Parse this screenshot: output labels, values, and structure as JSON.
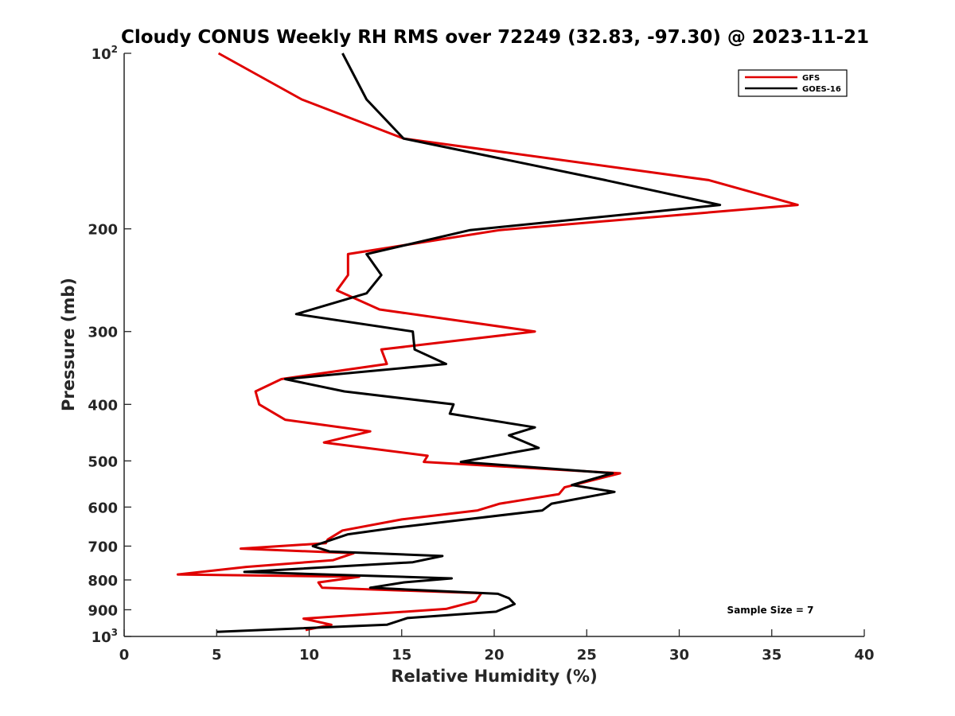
{
  "chart_data": {
    "type": "line",
    "title": "Cloudy CONUS Weekly RH RMS over 72249 (32.83, -97.30) @ 2023-11-21",
    "xlabel": "Relative Humidity (%)",
    "ylabel": "Pressure (mb)",
    "xlim": [
      0,
      40
    ],
    "ylim": [
      100,
      1000
    ],
    "y_scale": "log",
    "y_reversed": true,
    "x_ticks": [
      0,
      5,
      10,
      15,
      20,
      25,
      30,
      35,
      40
    ],
    "y_ticks": [
      {
        "value": 100,
        "base": "10",
        "exp": "2"
      },
      {
        "value": 200,
        "label": "200"
      },
      {
        "value": 300,
        "label": "300"
      },
      {
        "value": 400,
        "label": "400"
      },
      {
        "value": 500,
        "label": "500"
      },
      {
        "value": 600,
        "label": "600"
      },
      {
        "value": 700,
        "label": "700"
      },
      {
        "value": 800,
        "label": "800"
      },
      {
        "value": 900,
        "label": "900"
      },
      {
        "value": 1000,
        "base": "10",
        "exp": "3"
      }
    ],
    "legend_position": "top-right",
    "grid": false,
    "annotation": "Sample Size = 7",
    "series": [
      {
        "name": "GFS",
        "color": "#e00000",
        "points": [
          [
            5.1,
            100
          ],
          [
            9.6,
            120
          ],
          [
            15.1,
            140
          ],
          [
            31.6,
            165
          ],
          [
            36.4,
            182
          ],
          [
            20.3,
            201
          ],
          [
            12.1,
            221
          ],
          [
            12.1,
            240
          ],
          [
            11.5,
            255
          ],
          [
            13.8,
            275
          ],
          [
            22.2,
            300
          ],
          [
            13.9,
            322
          ],
          [
            14.2,
            341
          ],
          [
            8.5,
            362
          ],
          [
            7.1,
            380
          ],
          [
            7.3,
            400
          ],
          [
            8.7,
            425
          ],
          [
            13.3,
            445
          ],
          [
            10.8,
            465
          ],
          [
            16.4,
            490
          ],
          [
            16.2,
            502
          ],
          [
            26.8,
            525
          ],
          [
            23.8,
            555
          ],
          [
            23.5,
            570
          ],
          [
            20.3,
            592
          ],
          [
            19.1,
            608
          ],
          [
            15.0,
            630
          ],
          [
            11.8,
            658
          ],
          [
            11.0,
            682
          ],
          [
            10.9,
            692
          ],
          [
            6.3,
            707
          ],
          [
            12.4,
            720
          ],
          [
            11.3,
            740
          ],
          [
            6.6,
            760
          ],
          [
            2.9,
            783
          ],
          [
            12.7,
            790
          ],
          [
            10.5,
            808
          ],
          [
            10.7,
            825
          ],
          [
            19.3,
            843
          ],
          [
            19.0,
            870
          ],
          [
            17.4,
            897
          ],
          [
            9.7,
            932
          ],
          [
            11.2,
            955
          ],
          [
            9.8,
            975
          ]
        ]
      },
      {
        "name": "GOES-16",
        "color": "#000000",
        "points": [
          [
            11.8,
            100
          ],
          [
            13.1,
            120
          ],
          [
            15.1,
            140
          ],
          [
            26.0,
            165
          ],
          [
            32.2,
            182
          ],
          [
            18.7,
            201
          ],
          [
            13.1,
            221
          ],
          [
            13.9,
            240
          ],
          [
            13.1,
            258
          ],
          [
            9.3,
            280
          ],
          [
            15.6,
            300
          ],
          [
            15.7,
            322
          ],
          [
            17.4,
            341
          ],
          [
            8.7,
            362
          ],
          [
            11.9,
            380
          ],
          [
            17.8,
            400
          ],
          [
            17.6,
            415
          ],
          [
            22.2,
            438
          ],
          [
            20.8,
            452
          ],
          [
            22.4,
            475
          ],
          [
            18.2,
            502
          ],
          [
            26.4,
            525
          ],
          [
            24.2,
            550
          ],
          [
            26.5,
            565
          ],
          [
            23.1,
            592
          ],
          [
            22.6,
            608
          ],
          [
            14.8,
            650
          ],
          [
            12.1,
            668
          ],
          [
            10.2,
            700
          ],
          [
            11.1,
            715
          ],
          [
            17.2,
            728
          ],
          [
            15.6,
            746
          ],
          [
            6.5,
            775
          ],
          [
            17.7,
            795
          ],
          [
            15.1,
            808
          ],
          [
            13.3,
            825
          ],
          [
            20.2,
            845
          ],
          [
            20.8,
            860
          ],
          [
            21.1,
            880
          ],
          [
            20.1,
            907
          ],
          [
            15.3,
            930
          ],
          [
            14.2,
            955
          ],
          [
            5.0,
            982
          ]
        ]
      }
    ]
  }
}
